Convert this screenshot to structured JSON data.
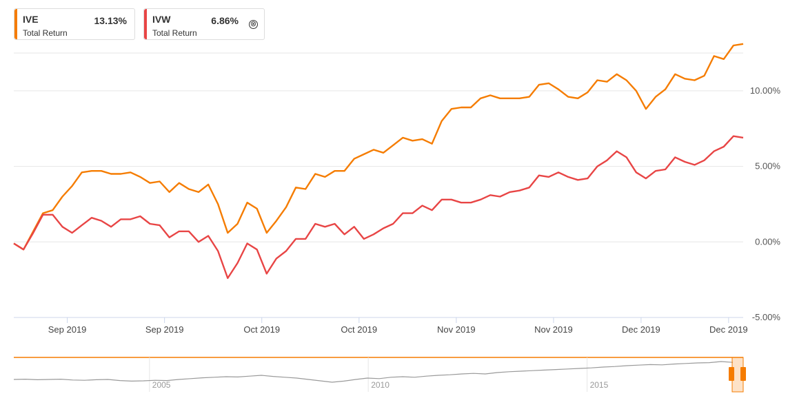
{
  "legend": [
    {
      "ticker": "IVE",
      "value": "13.13%",
      "subtitle": "Total Return",
      "color": "#f57c00"
    },
    {
      "ticker": "IVW",
      "value": "6.86%",
      "subtitle": "Total Return",
      "color": "#e84545"
    }
  ],
  "close_symbol": "⊗",
  "chart_data": {
    "type": "line",
    "y_unit": "%",
    "ylim": [
      -5,
      12.5
    ],
    "y_ticks": [
      -5,
      0,
      5,
      10
    ],
    "y_tick_labels": [
      "-5.00%",
      "0.00%",
      "5.00%",
      "10.00%"
    ],
    "x_tick_labels": [
      "Sep 2019",
      "Sep 2019",
      "Oct 2019",
      "Oct 2019",
      "Nov 2019",
      "Nov 2019",
      "Dec 2019",
      "Dec 2019"
    ],
    "x_tick_positions": [
      5.5,
      15.5,
      25.5,
      35.5,
      45.5,
      55.5,
      64.5,
      73.5
    ],
    "grid": true,
    "series": [
      {
        "name": "IVE",
        "color": "#f57c00",
        "values": [
          -0.1,
          -0.5,
          0.7,
          1.9,
          2.1,
          3.0,
          3.7,
          4.6,
          4.7,
          4.7,
          4.5,
          4.5,
          4.6,
          4.3,
          3.9,
          4.0,
          3.3,
          3.9,
          3.5,
          3.3,
          3.8,
          2.5,
          0.6,
          1.2,
          2.6,
          2.2,
          0.6,
          1.4,
          2.3,
          3.6,
          3.5,
          4.5,
          4.3,
          4.7,
          4.7,
          5.5,
          5.8,
          6.1,
          5.9,
          6.4,
          6.9,
          6.7,
          6.8,
          6.5,
          8.0,
          8.8,
          8.9,
          8.9,
          9.5,
          9.7,
          9.5,
          9.5,
          9.5,
          9.6,
          10.4,
          10.5,
          10.1,
          9.6,
          9.5,
          9.9,
          10.7,
          10.6,
          11.1,
          10.7,
          10.0,
          8.8,
          9.6,
          10.1,
          11.1,
          10.8,
          10.7,
          11.0,
          12.3,
          12.1,
          13.0,
          13.1
        ]
      },
      {
        "name": "IVW",
        "color": "#e84545",
        "values": [
          -0.1,
          -0.5,
          0.6,
          1.8,
          1.8,
          1.0,
          0.6,
          1.1,
          1.6,
          1.4,
          1.0,
          1.5,
          1.5,
          1.7,
          1.2,
          1.1,
          0.3,
          0.7,
          0.7,
          0.0,
          0.4,
          -0.6,
          -2.4,
          -1.4,
          -0.1,
          -0.5,
          -2.1,
          -1.1,
          -0.6,
          0.2,
          0.2,
          1.2,
          1.0,
          1.2,
          0.5,
          1.0,
          0.2,
          0.5,
          0.9,
          1.2,
          1.9,
          1.9,
          2.4,
          2.1,
          2.8,
          2.8,
          2.6,
          2.6,
          2.8,
          3.1,
          3.0,
          3.3,
          3.4,
          3.6,
          4.4,
          4.3,
          4.6,
          4.3,
          4.1,
          4.2,
          5.0,
          5.4,
          6.0,
          5.6,
          4.6,
          4.2,
          4.7,
          4.8,
          5.6,
          5.3,
          5.1,
          5.4,
          6.0,
          6.3,
          7.0,
          6.9
        ]
      }
    ],
    "navigator": {
      "labels": [
        "2005",
        "2010",
        "2015"
      ],
      "label_positions": [
        0.186,
        0.486,
        0.786
      ],
      "values": [
        0.3,
        0.31,
        0.29,
        0.3,
        0.31,
        0.28,
        0.27,
        0.29,
        0.3,
        0.26,
        0.24,
        0.25,
        0.27,
        0.26,
        0.3,
        0.33,
        0.36,
        0.38,
        0.4,
        0.39,
        0.42,
        0.45,
        0.41,
        0.38,
        0.35,
        0.3,
        0.25,
        0.2,
        0.24,
        0.3,
        0.35,
        0.33,
        0.38,
        0.4,
        0.38,
        0.42,
        0.45,
        0.47,
        0.5,
        0.52,
        0.5,
        0.55,
        0.58,
        0.6,
        0.62,
        0.64,
        0.66,
        0.68,
        0.7,
        0.72,
        0.75,
        0.77,
        0.8,
        0.82,
        0.84,
        0.83,
        0.86,
        0.88,
        0.9,
        0.91,
        0.95,
        0.92
      ]
    }
  }
}
